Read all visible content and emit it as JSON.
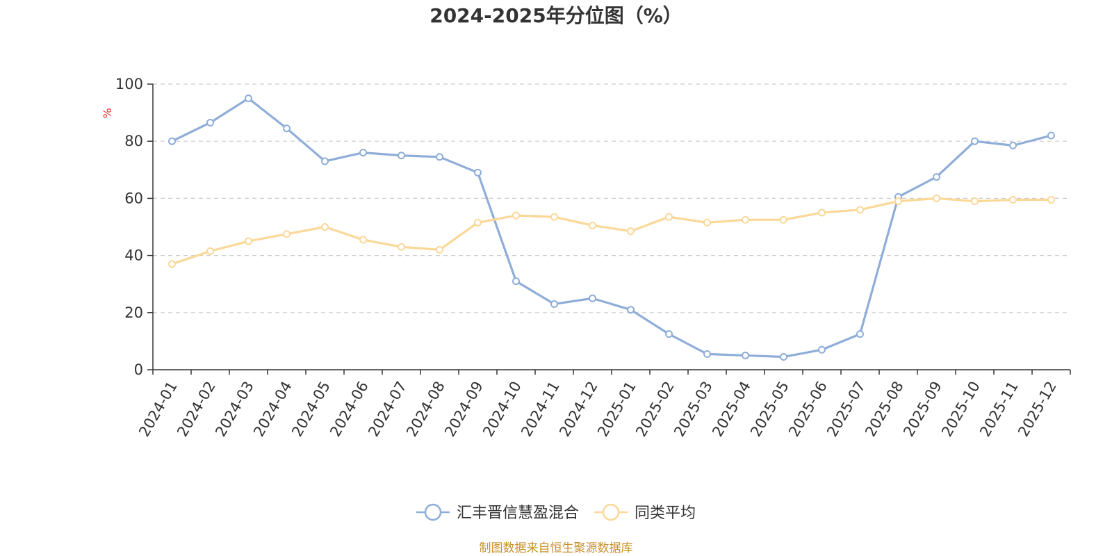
{
  "chart_data": {
    "type": "line",
    "title": "2024-2025年分位图（%）",
    "ylabel": "%",
    "ylim": [
      0,
      100
    ],
    "yticks": [
      0,
      20,
      40,
      60,
      80,
      100
    ],
    "grid": true,
    "legend_position": "bottom-center",
    "categories": [
      "2024-01",
      "2024-02",
      "2024-03",
      "2024-04",
      "2024-05",
      "2024-06",
      "2024-07",
      "2024-08",
      "2024-09",
      "2024-10",
      "2024-11",
      "2024-12",
      "2025-01",
      "2025-02",
      "2025-03",
      "2025-04",
      "2025-05",
      "2025-06",
      "2025-07",
      "2025-08",
      "2025-09",
      "2025-10",
      "2025-11",
      "2025-12"
    ],
    "series": [
      {
        "name": "汇丰晋信慧盈混合",
        "color": "#8eadd8",
        "values": [
          80,
          86.5,
          95,
          84.5,
          73,
          76,
          75,
          74.5,
          69,
          31,
          23,
          25,
          21,
          12.5,
          5.5,
          5,
          4.5,
          7,
          12.5,
          60.5,
          67.5,
          80,
          78.5,
          82
        ]
      },
      {
        "name": "同类平均",
        "color": "#fad898",
        "values": [
          37,
          41.5,
          45,
          47.5,
          50,
          45.5,
          43,
          42,
          51.5,
          54,
          53.5,
          50.5,
          48.5,
          53.5,
          51.5,
          52.5,
          52.5,
          55,
          56,
          59,
          60,
          59,
          59.5,
          59.5
        ]
      }
    ],
    "source_note": "制图数据来自恒生聚源数据库"
  }
}
